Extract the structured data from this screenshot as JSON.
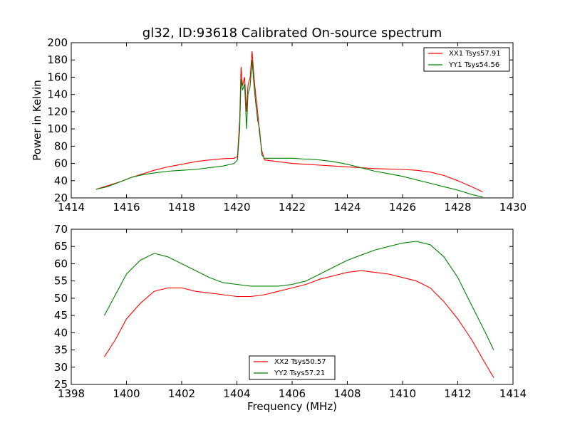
{
  "title": "gl32, ID:93618 Calibrated On-source spectrum",
  "colors": {
    "xx": "#ff0000",
    "yy": "#008000"
  },
  "chart_data": [
    {
      "type": "line",
      "xlabel": "",
      "ylabel": "Power in Kelvin",
      "xlim": [
        1414,
        1430
      ],
      "ylim": [
        20,
        200
      ],
      "xticks": [
        1414,
        1416,
        1418,
        1420,
        1422,
        1424,
        1426,
        1428,
        1430
      ],
      "yticks": [
        20,
        40,
        60,
        80,
        100,
        120,
        140,
        160,
        180,
        200
      ],
      "legend_position": "top-right",
      "series": [
        {
          "name": "XX1 Tsys57.91",
          "color": "#ff0000",
          "points": [
            [
              1414.9,
              30
            ],
            [
              1415.3,
              34
            ],
            [
              1415.8,
              39
            ],
            [
              1416.2,
              44
            ],
            [
              1416.6,
              48
            ],
            [
              1417.0,
              52
            ],
            [
              1417.5,
              56
            ],
            [
              1418.0,
              59
            ],
            [
              1418.5,
              62
            ],
            [
              1419.0,
              64
            ],
            [
              1419.5,
              65.5
            ],
            [
              1419.9,
              66
            ],
            [
              1420.02,
              68
            ],
            [
              1420.1,
              110
            ],
            [
              1420.15,
              172
            ],
            [
              1420.2,
              150
            ],
            [
              1420.28,
              160
            ],
            [
              1420.35,
              120
            ],
            [
              1420.4,
              150
            ],
            [
              1420.48,
              160
            ],
            [
              1420.55,
              190
            ],
            [
              1420.62,
              160
            ],
            [
              1420.68,
              140
            ],
            [
              1420.75,
              120
            ],
            [
              1420.82,
              95
            ],
            [
              1420.9,
              75
            ],
            [
              1421.0,
              64
            ],
            [
              1421.5,
              62
            ],
            [
              1422.0,
              60
            ],
            [
              1422.5,
              59
            ],
            [
              1423.0,
              58
            ],
            [
              1423.5,
              57
            ],
            [
              1424.0,
              56
            ],
            [
              1424.5,
              55
            ],
            [
              1425.0,
              54
            ],
            [
              1425.5,
              53.5
            ],
            [
              1426.0,
              53
            ],
            [
              1426.5,
              52
            ],
            [
              1427.0,
              50
            ],
            [
              1427.5,
              46
            ],
            [
              1428.0,
              40
            ],
            [
              1428.5,
              33
            ],
            [
              1428.9,
              27
            ]
          ]
        },
        {
          "name": "YY1 Tsys54.56",
          "color": "#008000",
          "points": [
            [
              1414.9,
              30
            ],
            [
              1415.3,
              33
            ],
            [
              1415.8,
              39
            ],
            [
              1416.2,
              44
            ],
            [
              1416.6,
              47
            ],
            [
              1417.0,
              49
            ],
            [
              1417.5,
              51
            ],
            [
              1418.0,
              52
            ],
            [
              1418.5,
              53
            ],
            [
              1419.0,
              55
            ],
            [
              1419.5,
              57
            ],
            [
              1419.9,
              60
            ],
            [
              1420.02,
              64
            ],
            [
              1420.1,
              100
            ],
            [
              1420.15,
              158
            ],
            [
              1420.2,
              145
            ],
            [
              1420.28,
              152
            ],
            [
              1420.35,
              100
            ],
            [
              1420.4,
              140
            ],
            [
              1420.48,
              150
            ],
            [
              1420.55,
              180
            ],
            [
              1420.62,
              150
            ],
            [
              1420.68,
              130
            ],
            [
              1420.75,
              110
            ],
            [
              1420.82,
              100
            ],
            [
              1420.9,
              70
            ],
            [
              1421.0,
              66
            ],
            [
              1421.5,
              66
            ],
            [
              1422.0,
              66
            ],
            [
              1422.5,
              65
            ],
            [
              1423.0,
              64
            ],
            [
              1423.5,
              62
            ],
            [
              1424.0,
              59
            ],
            [
              1424.5,
              55
            ],
            [
              1425.0,
              51
            ],
            [
              1425.5,
              48
            ],
            [
              1426.0,
              45
            ],
            [
              1426.5,
              41
            ],
            [
              1427.0,
              37
            ],
            [
              1427.5,
              33
            ],
            [
              1428.0,
              29
            ],
            [
              1428.5,
              24
            ],
            [
              1428.9,
              21
            ]
          ]
        }
      ]
    },
    {
      "type": "line",
      "xlabel": "Frequency (MHz)",
      "ylabel": "",
      "xlim": [
        1398,
        1414
      ],
      "ylim": [
        25,
        70
      ],
      "xticks": [
        1398,
        1400,
        1402,
        1404,
        1406,
        1408,
        1410,
        1412,
        1414
      ],
      "yticks": [
        25,
        30,
        35,
        40,
        45,
        50,
        55,
        60,
        65,
        70
      ],
      "legend_position": "bottom-center",
      "series": [
        {
          "name": "XX2 Tsys50.57",
          "color": "#ff0000",
          "points": [
            [
              1399.2,
              33
            ],
            [
              1399.6,
              38
            ],
            [
              1400.0,
              44
            ],
            [
              1400.5,
              48.5
            ],
            [
              1401.0,
              52
            ],
            [
              1401.5,
              53
            ],
            [
              1402.0,
              53
            ],
            [
              1402.5,
              52
            ],
            [
              1403.0,
              51.5
            ],
            [
              1403.5,
              51
            ],
            [
              1404.0,
              50.5
            ],
            [
              1404.5,
              50.5
            ],
            [
              1405.0,
              51
            ],
            [
              1405.5,
              52
            ],
            [
              1406.0,
              53
            ],
            [
              1406.5,
              54
            ],
            [
              1407.0,
              55.5
            ],
            [
              1407.5,
              56.5
            ],
            [
              1408.0,
              57.5
            ],
            [
              1408.5,
              58
            ],
            [
              1409.0,
              57.5
            ],
            [
              1409.5,
              57
            ],
            [
              1410.0,
              56
            ],
            [
              1410.5,
              55
            ],
            [
              1411.0,
              53
            ],
            [
              1411.5,
              49
            ],
            [
              1412.0,
              44
            ],
            [
              1412.5,
              38
            ],
            [
              1413.0,
              31
            ],
            [
              1413.3,
              27
            ]
          ]
        },
        {
          "name": "YY2 Tsys57.21",
          "color": "#008000",
          "points": [
            [
              1399.2,
              45
            ],
            [
              1399.6,
              51
            ],
            [
              1400.0,
              57
            ],
            [
              1400.5,
              61
            ],
            [
              1401.0,
              63
            ],
            [
              1401.5,
              62
            ],
            [
              1402.0,
              60
            ],
            [
              1402.5,
              58
            ],
            [
              1403.0,
              56
            ],
            [
              1403.5,
              54.5
            ],
            [
              1404.0,
              54
            ],
            [
              1404.5,
              53.5
            ],
            [
              1405.0,
              53.5
            ],
            [
              1405.5,
              53.5
            ],
            [
              1406.0,
              54
            ],
            [
              1406.5,
              55
            ],
            [
              1407.0,
              57
            ],
            [
              1407.5,
              59
            ],
            [
              1408.0,
              61
            ],
            [
              1408.5,
              62.5
            ],
            [
              1409.0,
              64
            ],
            [
              1409.5,
              65
            ],
            [
              1410.0,
              66
            ],
            [
              1410.5,
              66.5
            ],
            [
              1411.0,
              65.5
            ],
            [
              1411.5,
              62
            ],
            [
              1412.0,
              56
            ],
            [
              1412.5,
              48
            ],
            [
              1413.0,
              40
            ],
            [
              1413.3,
              35
            ]
          ]
        }
      ]
    }
  ]
}
